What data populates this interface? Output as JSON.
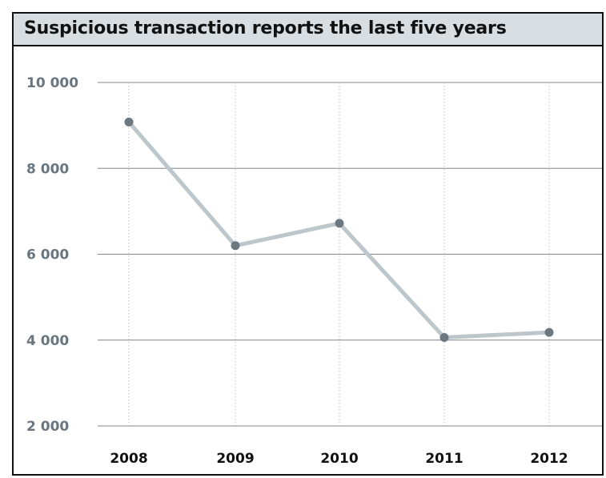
{
  "colors": {
    "title_bar_bg": "#d7dde1",
    "frame_border": "#111111",
    "gridline": "#7d878e",
    "vertical_guides": "#b9c0c5",
    "series_line": "#bcc6cb",
    "marker": "#6c7780",
    "y_tick_text": "#6a767f",
    "x_tick_text": "#111111"
  },
  "chart_data": {
    "type": "line",
    "title": "Suspicious transaction reports the last five years",
    "xlabel": "",
    "ylabel": "",
    "categories": [
      "2008",
      "2009",
      "2010",
      "2011",
      "2012"
    ],
    "series": [
      {
        "values": [
          9080,
          6200,
          6720,
          4060,
          4180
        ]
      }
    ],
    "ylim": [
      2000,
      10000
    ],
    "yticks": [
      10000,
      8000,
      6000,
      4000,
      2000
    ],
    "ytick_labels": [
      "10 000",
      "8 000",
      "6 000",
      "4 000",
      "2 000"
    ],
    "grid": "horizontal gridlines with dotted vertical guides",
    "legend": "none"
  }
}
